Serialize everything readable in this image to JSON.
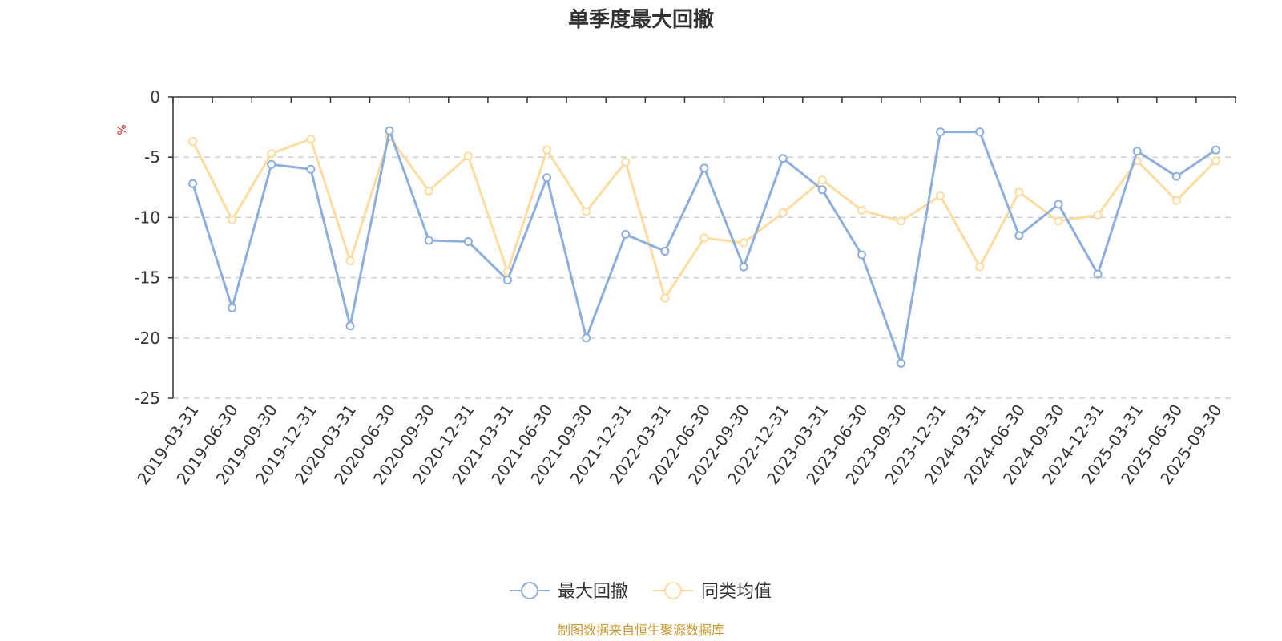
{
  "chart_data": {
    "type": "line",
    "title": "单季度最大回撤",
    "ylabel": "%",
    "xlabel": "",
    "ylim": [
      -25,
      0
    ],
    "yticks": [
      0,
      -5,
      -10,
      -15,
      -20,
      -25
    ],
    "grid": "horizontal-dashed",
    "legend_position": "bottom-center",
    "categories": [
      "2019-03-31",
      "2019-06-30",
      "2019-09-30",
      "2019-12-31",
      "2020-03-31",
      "2020-06-30",
      "2020-09-30",
      "2020-12-31",
      "2021-03-31",
      "2021-06-30",
      "2021-09-30",
      "2021-12-31",
      "2022-03-31",
      "2022-06-30",
      "2022-09-30",
      "2022-12-31",
      "2023-03-31",
      "2023-06-30",
      "2023-09-30",
      "2023-12-31",
      "2024-03-31",
      "2024-06-30",
      "2024-09-30",
      "2024-12-31",
      "2025-03-31",
      "2025-06-30",
      "2025-09-30"
    ],
    "series": [
      {
        "name": "最大回撤",
        "color": "#8eaedc",
        "values": [
          -7.2,
          -17.5,
          -5.6,
          -6.0,
          -19.0,
          -2.8,
          -11.9,
          -12.0,
          -15.2,
          -6.7,
          -20.0,
          -11.4,
          -12.8,
          -5.9,
          -14.1,
          -5.1,
          -7.7,
          -13.1,
          -22.1,
          -2.9,
          -2.9,
          -11.5,
          -8.9,
          -14.7,
          -4.5,
          -6.6,
          -4.4
        ]
      },
      {
        "name": "同类均值",
        "color": "#fcdca0",
        "values": [
          -3.7,
          -10.2,
          -4.7,
          -3.5,
          -13.6,
          -3.3,
          -7.8,
          -4.9,
          -14.5,
          -4.4,
          -9.5,
          -5.4,
          -16.7,
          -11.7,
          -12.1,
          -9.6,
          -6.9,
          -9.4,
          -10.3,
          -8.2,
          -14.1,
          -7.9,
          -10.3,
          -9.8,
          -5.3,
          -8.6,
          -5.3
        ]
      }
    ],
    "source": "制图数据来自恒生聚源数据库"
  }
}
